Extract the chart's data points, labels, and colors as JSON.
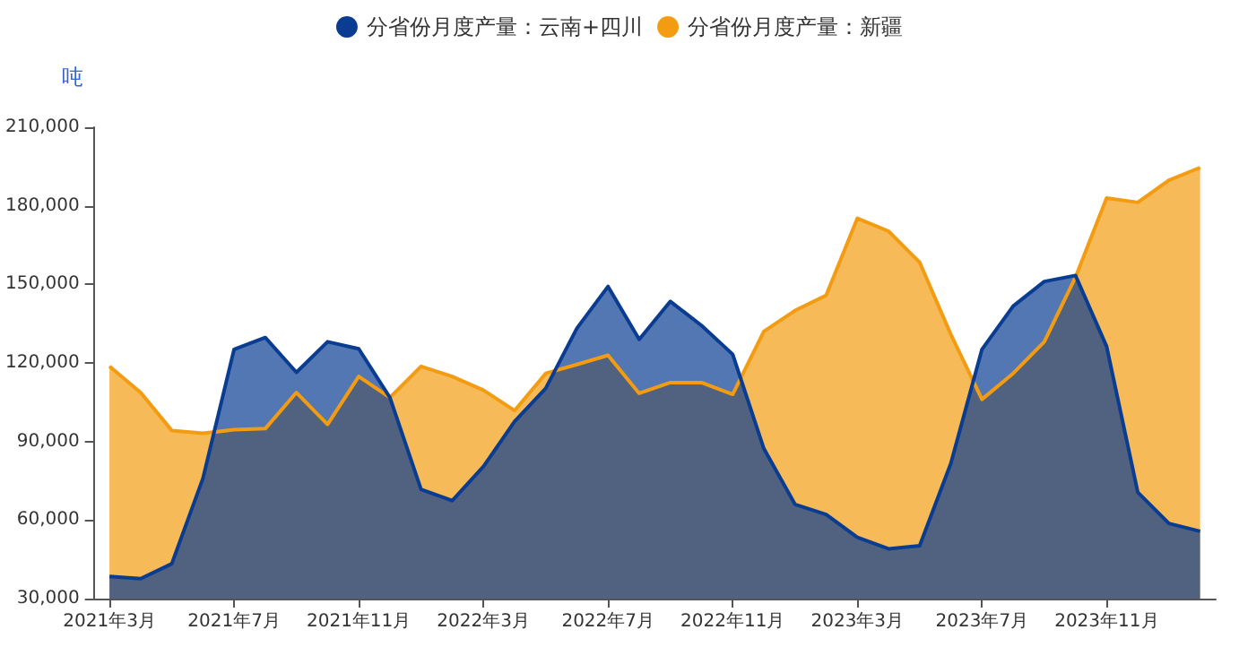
{
  "chart_data": {
    "type": "area",
    "ylabel": "吨",
    "categories": [
      "2021年3月",
      null,
      null,
      null,
      "2021年7月",
      null,
      null,
      null,
      "2021年11月",
      null,
      null,
      null,
      "2022年3月",
      null,
      null,
      null,
      "2022年7月",
      null,
      null,
      null,
      "2022年11月",
      null,
      null,
      null,
      "2023年3月",
      null,
      null,
      null,
      "2023年7月",
      null,
      null,
      null,
      "2023年11月",
      null,
      null,
      null
    ],
    "series": [
      {
        "name": "分省份月度产量：新疆",
        "color": "#f39c12",
        "values": [
          118700,
          108700,
          94200,
          93100,
          94500,
          94900,
          108700,
          96500,
          114800,
          106800,
          118700,
          114800,
          109600,
          101800,
          116000,
          119400,
          122900,
          108400,
          112500,
          112500,
          108000,
          132000,
          140000,
          145800,
          175200,
          170300,
          158400,
          130900,
          106100,
          116000,
          128100,
          152700,
          183000,
          181300,
          189800,
          194600
        ]
      },
      {
        "name": "分省份月度产量：云南+四川",
        "color": "#0a3d91",
        "values": [
          38500,
          37600,
          43300,
          75900,
          125200,
          129700,
          116400,
          128100,
          125400,
          106800,
          71700,
          67400,
          80400,
          97600,
          110300,
          133200,
          149200,
          129000,
          143500,
          134300,
          123300,
          87300,
          66000,
          62100,
          53400,
          49000,
          50200,
          81600,
          125200,
          141700,
          151100,
          153400,
          126300,
          70600,
          58700,
          55700
        ]
      }
    ],
    "ylim": [
      30000,
      210000
    ],
    "yticks": [
      {
        "value": 30000,
        "label": "30,000"
      },
      {
        "value": 60000,
        "label": "60,000"
      },
      {
        "value": 90000,
        "label": "90,000"
      },
      {
        "value": 120000,
        "label": "120,000"
      },
      {
        "value": 150000,
        "label": "150,000"
      },
      {
        "value": 180000,
        "label": "180,000"
      },
      {
        "value": 210000,
        "label": "210,000"
      }
    ],
    "grid": false,
    "legend": "top",
    "marker": "none",
    "line_style": "solid"
  }
}
